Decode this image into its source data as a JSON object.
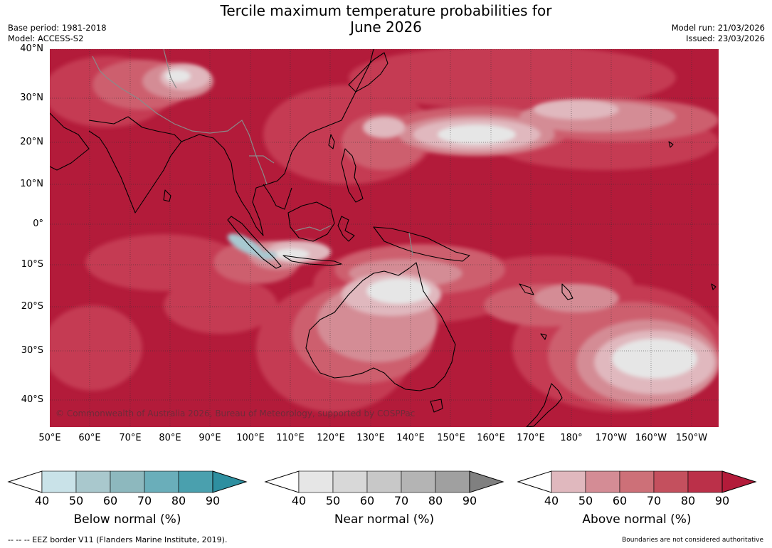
{
  "title_line1": "Tercile maximum temperature probabilities for",
  "title_line2": "June 2026",
  "meta_left": {
    "base_period": "Base period: 1981-2018",
    "model": "Model: ACCESS-S2"
  },
  "meta_right": {
    "model_run": "Model run: 21/03/2026",
    "issued": "Issued: 23/03/2026"
  },
  "map": {
    "lat_labels": [
      "40°N",
      "30°N",
      "20°N",
      "10°N",
      "0°",
      "10°S",
      "20°S",
      "30°S",
      "40°S"
    ],
    "lon_labels": [
      "50°E",
      "60°E",
      "70°E",
      "80°E",
      "90°E",
      "100°E",
      "110°E",
      "120°E",
      "130°E",
      "140°E",
      "150°E",
      "160°E",
      "170°E",
      "180°",
      "170°W",
      "160°W",
      "150°W"
    ],
    "copyright": "© Commonwealth of Australia 2026, Bureau of Meteorology, supported by COSPPac",
    "colors": {
      "ocean_above_90": "#b31b3a",
      "above_80": "#c53b52",
      "above_70": "#cd5f6e",
      "above_60": "#d48c95",
      "above_50": "#e0b8be",
      "near": "#e6e6e6",
      "below": "#a7c9d1",
      "coast": "#000000",
      "border": "#888888"
    }
  },
  "colorbars": [
    {
      "label": "Below normal (%)",
      "ticks": [
        "40",
        "50",
        "60",
        "70",
        "80",
        "90"
      ],
      "colors": [
        "#ffffff",
        "#c9e2e8",
        "#a9c8cd",
        "#8db8be",
        "#6aaeba",
        "#4aa0ae",
        "#2e8fa0"
      ]
    },
    {
      "label": "Near normal (%)",
      "ticks": [
        "40",
        "50",
        "60",
        "70",
        "80",
        "90"
      ],
      "colors": [
        "#ffffff",
        "#e6e6e6",
        "#d8d8d8",
        "#c8c8c8",
        "#b4b4b4",
        "#a0a0a0",
        "#808080"
      ]
    },
    {
      "label": "Above normal (%)",
      "ticks": [
        "40",
        "50",
        "60",
        "70",
        "80",
        "90"
      ],
      "colors": [
        "#ffffff",
        "#e0b8be",
        "#d48c95",
        "#cd7078",
        "#c4505e",
        "#bb3049",
        "#b31b3a"
      ]
    }
  ],
  "footer_left": "--  --  -- EEZ border V11 (Flanders Marine Institute, 2019).",
  "footer_right": "Boundaries are not considered authoritative"
}
